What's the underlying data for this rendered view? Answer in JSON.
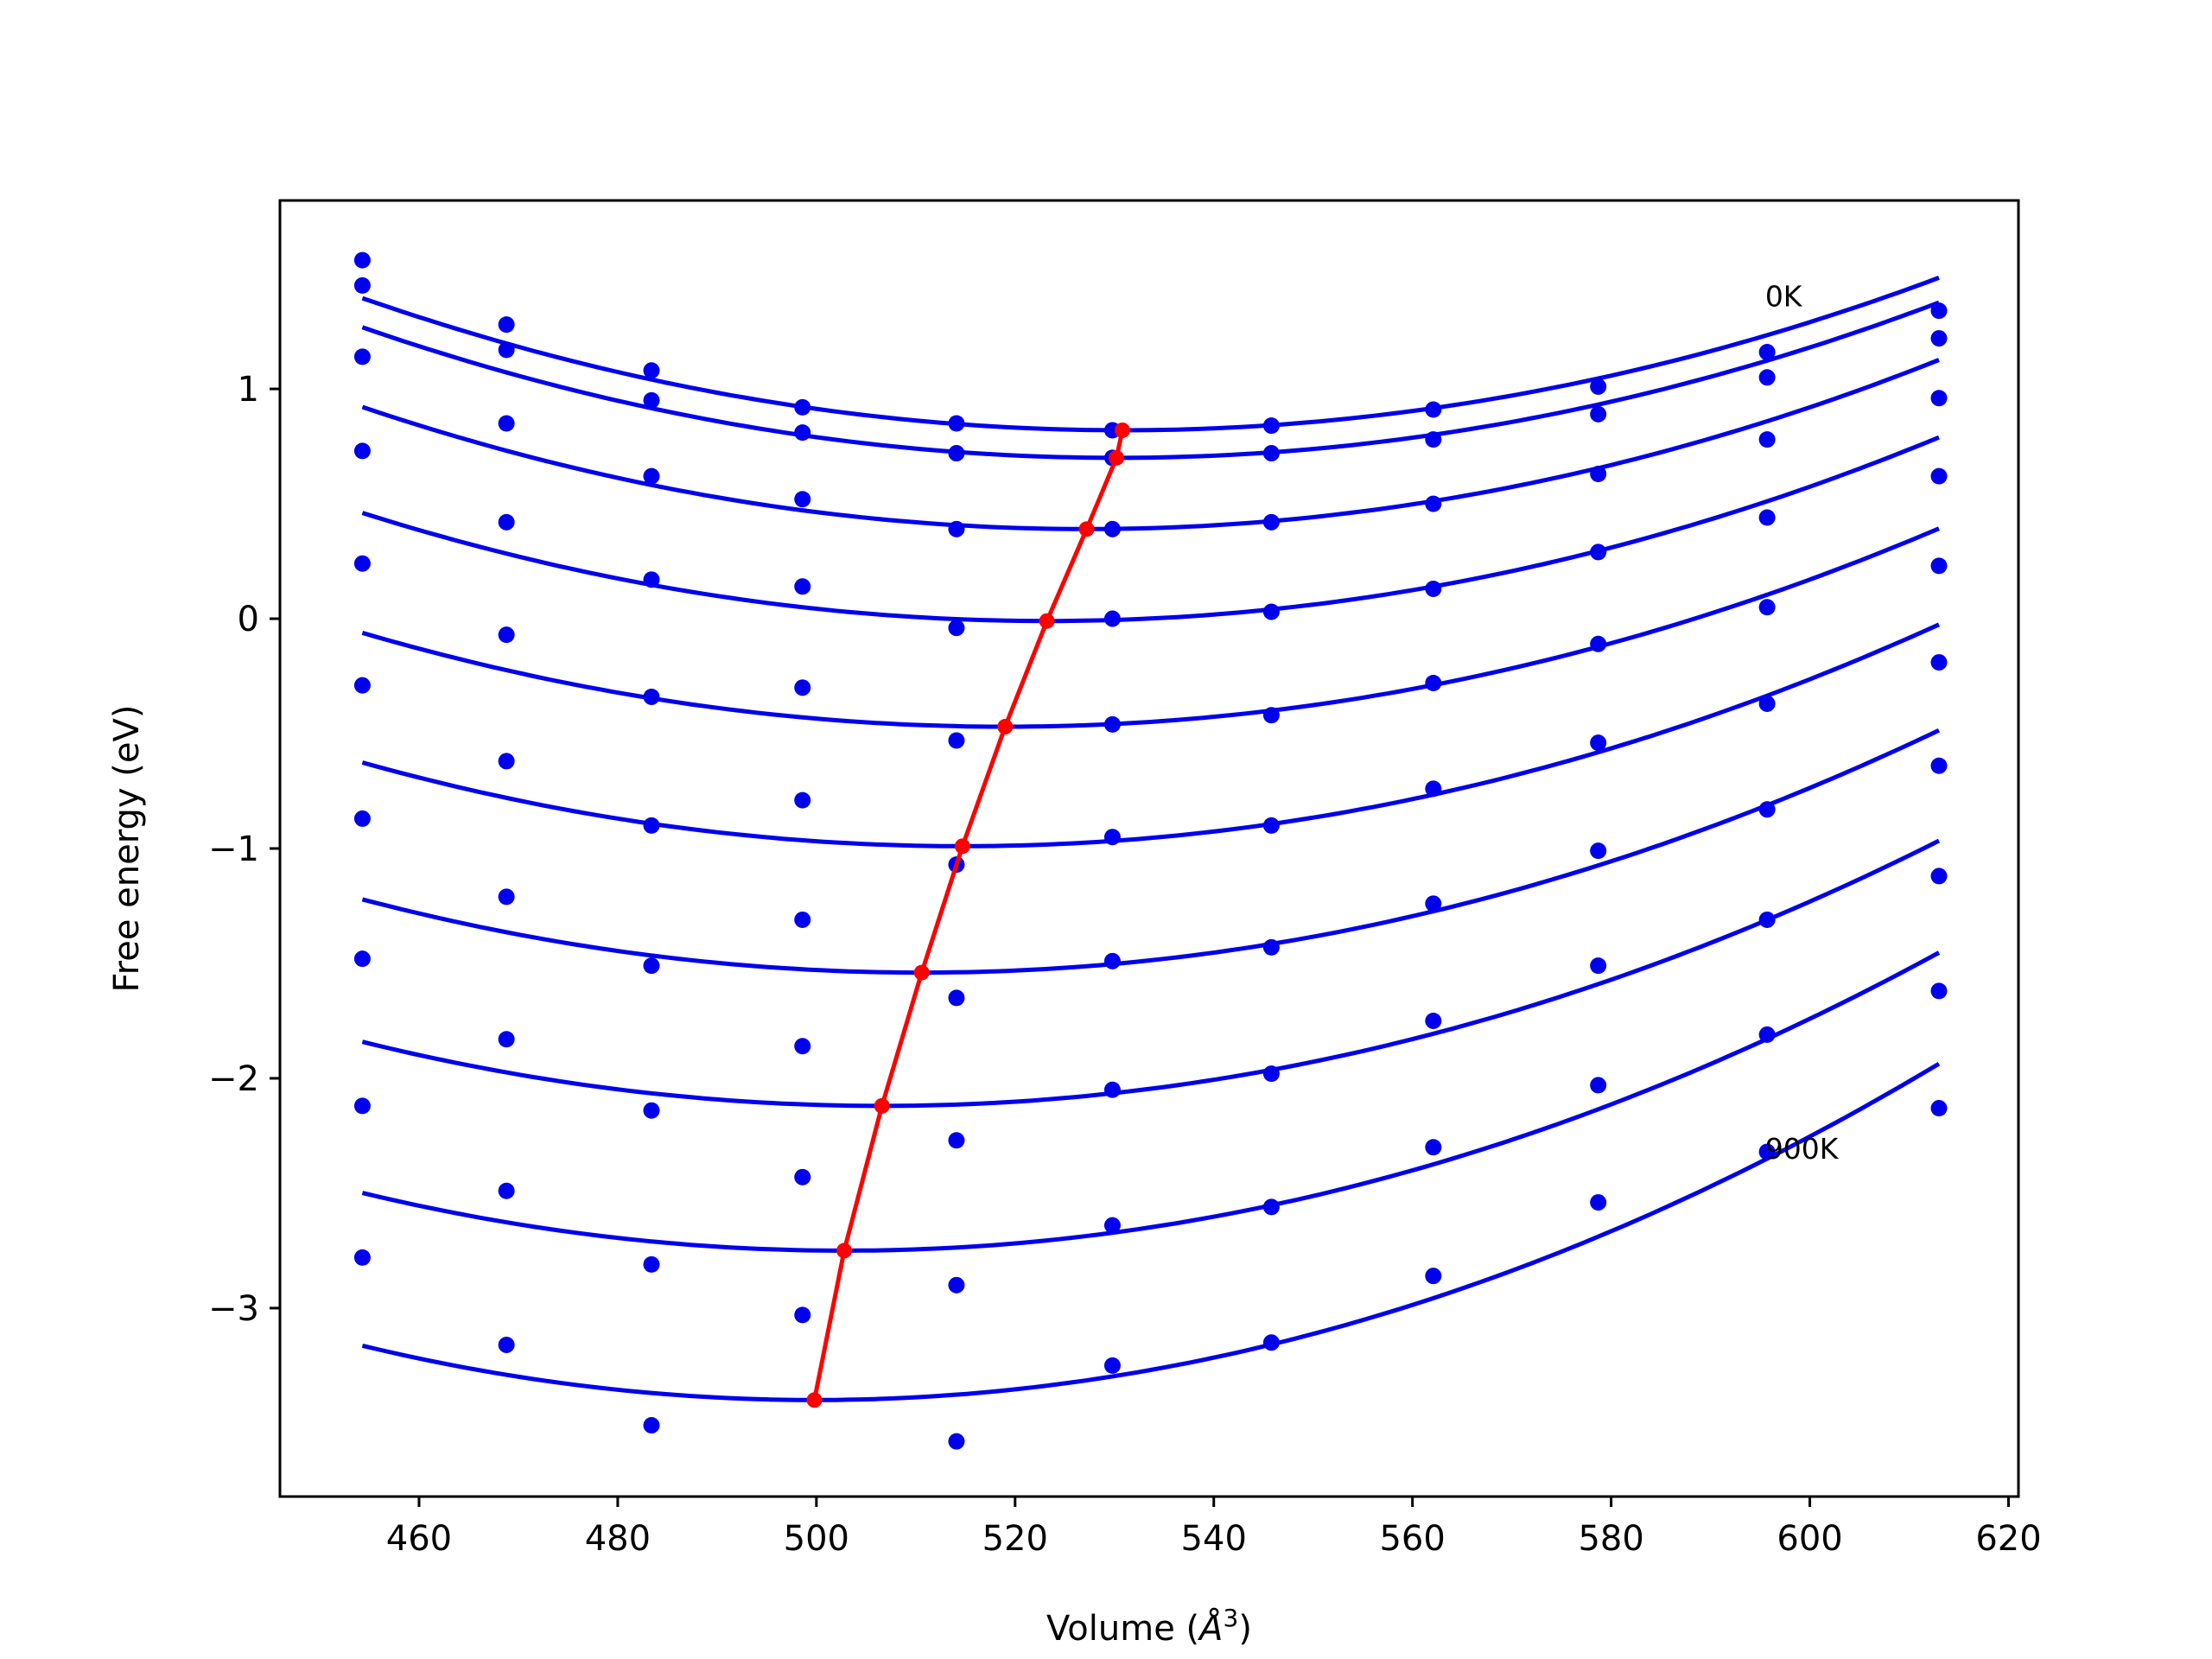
{
  "chart_data": {
    "type": "line",
    "title": "",
    "xlabel": "Volume ($\\AA^3$)",
    "xlabel_main": "Volume (",
    "xlabel_unit": "Å",
    "xlabel_sup": "3",
    "xlabel_close": ")",
    "ylabel": "Free energy (eV)",
    "xlim": [
      446,
      621
    ],
    "ylim": [
      -3.82,
      1.82
    ],
    "xticks": [
      460,
      480,
      500,
      520,
      540,
      560,
      580,
      600,
      620
    ],
    "yticks": [
      -3,
      -2,
      -1,
      0,
      1
    ],
    "ytick_labels": [
      "−3",
      "−2",
      "−1",
      "0",
      "1"
    ],
    "grid": false,
    "annotations": [
      {
        "text": "0K",
        "x": 595.5,
        "y": 1.36
      },
      {
        "text": "900K",
        "x": 595.5,
        "y": -2.35
      }
    ],
    "volumes": [
      454.3,
      468.8,
      483.4,
      498.6,
      514.1,
      529.8,
      545.8,
      562.1,
      578.7,
      595.7,
      613.0
    ],
    "series": [
      {
        "points": [
          1.56,
          1.28,
          1.08,
          0.92,
          0.85,
          0.82,
          0.84,
          0.91,
          1.01,
          1.16,
          1.34
        ],
        "fit_min": [
          530.8,
          0.82
        ]
      },
      {
        "points": [
          1.45,
          1.17,
          0.95,
          0.81,
          0.72,
          0.7,
          0.72,
          0.78,
          0.89,
          1.05,
          1.22
        ],
        "fit_min": [
          530.2,
          0.7
        ]
      },
      {
        "points": [
          1.14,
          0.85,
          0.62,
          0.52,
          0.39,
          0.39,
          0.42,
          0.5,
          0.63,
          0.78,
          0.96
        ],
        "fit_min": [
          527.2,
          0.39
        ]
      },
      {
        "points": [
          0.73,
          0.42,
          0.17,
          0.14,
          -0.04,
          0.0,
          0.03,
          0.13,
          0.29,
          0.44,
          0.62
        ],
        "fit_min": [
          523.2,
          -0.01
        ]
      },
      {
        "points": [
          0.24,
          -0.07,
          -0.34,
          -0.3,
          -0.53,
          -0.46,
          -0.42,
          -0.28,
          -0.11,
          0.05,
          0.23
        ],
        "fit_min": [
          519.0,
          -0.47
        ]
      },
      {
        "points": [
          -0.29,
          -0.62,
          -0.9,
          -0.79,
          -1.07,
          -0.95,
          -0.9,
          -0.74,
          -0.54,
          -0.37,
          -0.19
        ],
        "fit_min": [
          514.7,
          -0.99
        ]
      },
      {
        "points": [
          -0.87,
          -1.21,
          -1.51,
          -1.31,
          -1.65,
          -1.49,
          -1.43,
          -1.24,
          -1.01,
          -0.83,
          -0.64
        ],
        "fit_min": [
          510.6,
          -1.54
        ]
      },
      {
        "points": [
          -1.48,
          -1.83,
          -2.14,
          -1.86,
          -2.27,
          -2.05,
          -1.98,
          -1.75,
          -1.51,
          -1.31,
          -1.12
        ],
        "fit_min": [
          506.6,
          -2.12
        ]
      },
      {
        "points": [
          -2.12,
          -2.49,
          -2.81,
          -2.43,
          -2.9,
          -2.64,
          -2.56,
          -2.3,
          -2.03,
          -1.81,
          -1.62
        ],
        "fit_min": [
          502.8,
          -2.75
        ]
      },
      {
        "points": [
          -2.78,
          -3.16,
          -3.51,
          -3.03,
          -3.58,
          -3.25,
          -3.15,
          -2.86,
          -2.54,
          -2.32,
          -2.13
        ],
        "fit_min": [
          499.8,
          -3.4
        ]
      }
    ],
    "minima_line": {
      "x": [
        499.8,
        502.8,
        506.6,
        510.6,
        514.7,
        519.0,
        523.2,
        527.2,
        530.2,
        530.8
      ],
      "y": [
        -3.4,
        -2.75,
        -2.12,
        -1.54,
        -0.99,
        -0.47,
        -0.01,
        0.39,
        0.7,
        0.82
      ]
    },
    "colors": {
      "fit": "#0000ee",
      "points": "#0000ee",
      "minima": "#ff0000",
      "axes": "#000000"
    }
  }
}
